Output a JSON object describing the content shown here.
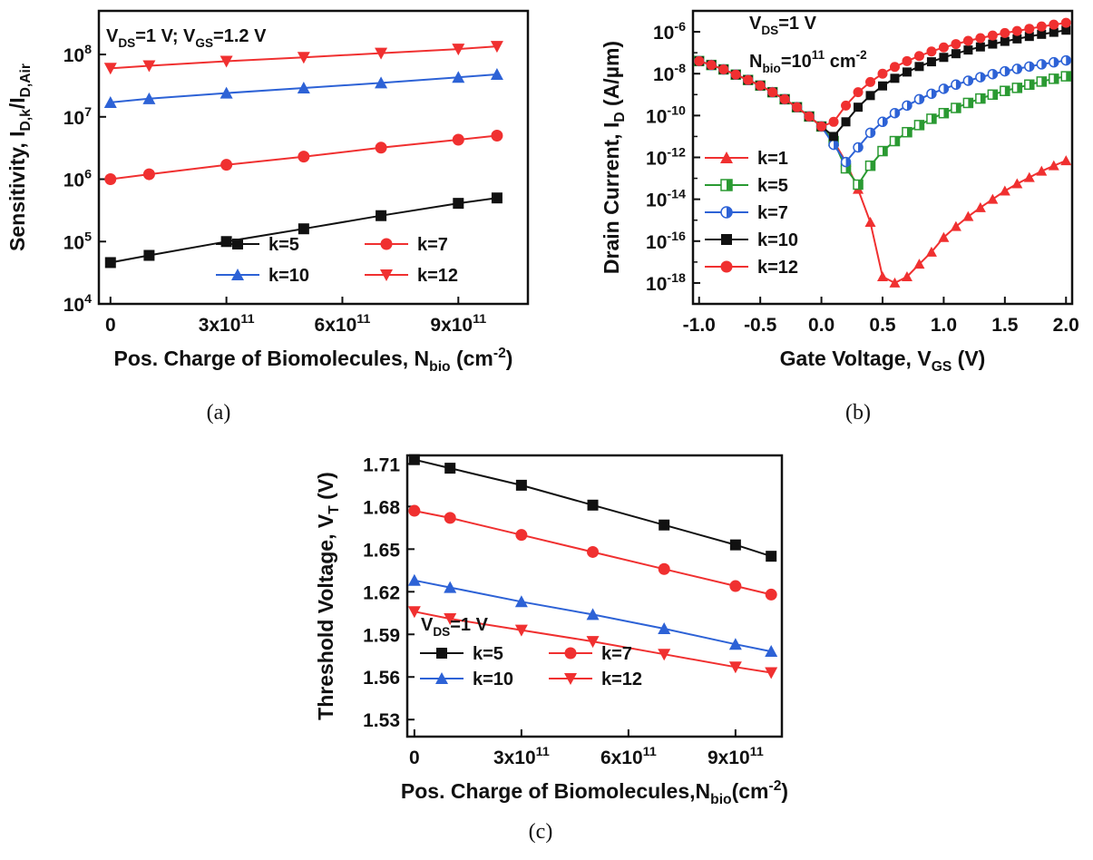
{
  "chart_data": [
    {
      "id": "a",
      "type": "scatter",
      "caption": "(a)",
      "yscale": "log",
      "xlim": [
        -30000000000.0,
        1080000000000.0
      ],
      "ylim": [
        10000.0,
        500000000.0
      ],
      "xticks": [
        {
          "v": 0,
          "l": "0"
        },
        {
          "v": 300000000000.0,
          "l": "3x10",
          "e": "11"
        },
        {
          "v": 600000000000.0,
          "l": "6x10",
          "e": "11"
        },
        {
          "v": 900000000000.0,
          "l": "9x10",
          "e": "11"
        }
      ],
      "yticks": [
        {
          "v": 10000.0,
          "e": "4"
        },
        {
          "v": 100000.0,
          "e": "5"
        },
        {
          "v": 1000000.0,
          "e": "6"
        },
        {
          "v": 10000000.0,
          "e": "7"
        },
        {
          "v": 100000000.0,
          "e": "8"
        }
      ],
      "xlabel": {
        "parts": [
          [
            "Pos. Charge of Biomolecules, N",
            ""
          ],
          [
            "bio",
            "sub"
          ],
          [
            " (cm",
            ""
          ],
          [
            "-2",
            "sup"
          ],
          [
            ")",
            ""
          ]
        ]
      },
      "ylabel": {
        "parts": [
          [
            "Sensitivity, I",
            ""
          ],
          [
            "D,k",
            "sub"
          ],
          [
            "/I",
            ""
          ],
          [
            "D,Air",
            "sub"
          ]
        ]
      },
      "annotations": [
        {
          "parts": [
            [
              "V",
              ""
            ],
            [
              "DS",
              "sub"
            ],
            [
              "=1 V; V",
              ""
            ],
            [
              "GS",
              "sub"
            ],
            [
              "=1.2 V",
              ""
            ]
          ]
        }
      ],
      "legend": {
        "position": "bottom-right",
        "columns": 2
      },
      "series": [
        {
          "name": "k=5",
          "color": "#111111",
          "marker": "square",
          "x": [
            0,
            100000000000.0,
            300000000000.0,
            500000000000.0,
            700000000000.0,
            900000000000.0,
            1000000000000.0
          ],
          "y": [
            46000.0,
            60000.0,
            100000.0,
            160000.0,
            260000.0,
            410000.0,
            500000.0
          ]
        },
        {
          "name": "k=7",
          "color": "#f03030",
          "marker": "circle",
          "x": [
            0,
            100000000000.0,
            300000000000.0,
            500000000000.0,
            700000000000.0,
            900000000000.0,
            1000000000000.0
          ],
          "y": [
            1000000.0,
            1200000.0,
            1700000.0,
            2300000.0,
            3200000.0,
            4300000.0,
            5000000.0
          ]
        },
        {
          "name": "k=10",
          "color": "#2d62d6",
          "marker": "triangle-up",
          "x": [
            0,
            100000000000.0,
            300000000000.0,
            500000000000.0,
            700000000000.0,
            900000000000.0,
            1000000000000.0
          ],
          "y": [
            17000000.0,
            19500000.0,
            24000000.0,
            29000000.0,
            35000000.0,
            43000000.0,
            48000000.0
          ]
        },
        {
          "name": "k=12",
          "color": "#f03030",
          "marker": "triangle-down",
          "x": [
            0,
            100000000000.0,
            300000000000.0,
            500000000000.0,
            700000000000.0,
            900000000000.0,
            1000000000000.0
          ],
          "y": [
            60000000.0,
            66000000.0,
            78000000.0,
            90000000.0,
            105000000.0,
            122000000.0,
            135000000.0
          ]
        }
      ]
    },
    {
      "id": "b",
      "type": "scatter",
      "caption": "(b)",
      "yscale": "log",
      "xlim": [
        -1.05,
        2.05
      ],
      "ylim": [
        1e-19,
        1e-05
      ],
      "xticks": [
        {
          "v": -1,
          "l": "-1.0"
        },
        {
          "v": -0.5,
          "l": "-0.5"
        },
        {
          "v": 0,
          "l": "0.0"
        },
        {
          "v": 0.5,
          "l": "0.5"
        },
        {
          "v": 1,
          "l": "1.0"
        },
        {
          "v": 1.5,
          "l": "1.5"
        },
        {
          "v": 2,
          "l": "2.0"
        }
      ],
      "yticks": [
        {
          "v": 1e-18,
          "e": "-18"
        },
        {
          "v": 1e-16,
          "e": "-16"
        },
        {
          "v": 1e-14,
          "e": "-14"
        },
        {
          "v": 1e-12,
          "e": "-12"
        },
        {
          "v": 1e-10,
          "e": "-10"
        },
        {
          "v": 1e-08,
          "e": "-8"
        },
        {
          "v": 1e-06,
          "e": "-6"
        }
      ],
      "xlabel": {
        "parts": [
          [
            "Gate Voltage, V",
            ""
          ],
          [
            "GS",
            "sub"
          ],
          [
            " (V)",
            ""
          ]
        ]
      },
      "ylabel": {
        "parts": [
          [
            "Drain Current, I",
            ""
          ],
          [
            "D",
            "sub"
          ],
          [
            " (A/µm)",
            ""
          ]
        ]
      },
      "annotations": [
        {
          "parts": [
            [
              "V",
              ""
            ],
            [
              "DS",
              "sub"
            ],
            [
              "=1 V",
              ""
            ]
          ]
        },
        {
          "parts": [
            [
              "N",
              ""
            ],
            [
              "bio",
              "sub"
            ],
            [
              "=10",
              ""
            ],
            [
              "11",
              "sup"
            ],
            [
              " cm",
              ""
            ],
            [
              "-2",
              "sup"
            ]
          ]
        }
      ],
      "legend": {
        "position": "left",
        "columns": 1
      },
      "series": [
        {
          "name": "k=1",
          "color": "#f03030",
          "marker": "triangle-up",
          "x": [
            -1.0,
            -0.9,
            -0.8,
            -0.7,
            -0.6,
            -0.5,
            -0.4,
            -0.3,
            -0.2,
            -0.1,
            0.0,
            0.1,
            0.2,
            0.3,
            0.4,
            0.5,
            0.6,
            0.7,
            0.8,
            0.9,
            1.0,
            1.1,
            1.2,
            1.3,
            1.4,
            1.5,
            1.6,
            1.7,
            1.8,
            1.9,
            2.0
          ],
          "y": [
            4e-08,
            2.6e-08,
            1.6e-08,
            9e-09,
            5e-09,
            2.7e-09,
            1.3e-09,
            6e-10,
            2.5e-10,
            9e-11,
            3e-11,
            6e-12,
            6e-13,
            3e-14,
            8e-16,
            2e-18,
            1e-18,
            2e-18,
            8e-18,
            3e-17,
            1.5e-16,
            5e-16,
            1.5e-15,
            4e-15,
            1e-14,
            2.5e-14,
            5.5e-14,
            1.1e-13,
            2.2e-13,
            4e-13,
            7e-13
          ]
        },
        {
          "name": "k=5",
          "color": "#2a9a32",
          "marker": "half-square",
          "x": [
            -1.0,
            -0.9,
            -0.8,
            -0.7,
            -0.6,
            -0.5,
            -0.4,
            -0.3,
            -0.2,
            -0.1,
            0.0,
            0.1,
            0.2,
            0.3,
            0.4,
            0.5,
            0.6,
            0.7,
            0.8,
            0.9,
            1.0,
            1.1,
            1.2,
            1.3,
            1.4,
            1.5,
            1.6,
            1.7,
            1.8,
            1.9,
            2.0
          ],
          "y": [
            4e-08,
            2.6e-08,
            1.6e-08,
            9e-09,
            5e-09,
            2.7e-09,
            1.3e-09,
            6e-10,
            2.5e-10,
            9e-11,
            3e-11,
            6e-12,
            3e-13,
            5e-14,
            4e-13,
            2e-12,
            6e-12,
            1.6e-11,
            3.5e-11,
            7e-11,
            1.3e-10,
            2.3e-10,
            4e-10,
            6.5e-10,
            1e-09,
            1.5e-09,
            2.1e-09,
            3e-09,
            4.2e-09,
            5.7e-09,
            7.5e-09
          ]
        },
        {
          "name": "k=7",
          "color": "#2d62d6",
          "marker": "half-circle",
          "x": [
            -1.0,
            -0.9,
            -0.8,
            -0.7,
            -0.6,
            -0.5,
            -0.4,
            -0.3,
            -0.2,
            -0.1,
            0.0,
            0.1,
            0.2,
            0.3,
            0.4,
            0.5,
            0.6,
            0.7,
            0.8,
            0.9,
            1.0,
            1.1,
            1.2,
            1.3,
            1.4,
            1.5,
            1.6,
            1.7,
            1.8,
            1.9,
            2.0
          ],
          "y": [
            4e-08,
            2.6e-08,
            1.6e-08,
            9e-09,
            5e-09,
            2.7e-09,
            1.3e-09,
            6e-10,
            2.5e-10,
            9e-11,
            3e-11,
            4e-12,
            6e-13,
            3e-12,
            1.5e-11,
            5e-11,
            1.3e-10,
            3e-10,
            6e-10,
            1.1e-09,
            1.9e-09,
            3e-09,
            4.6e-09,
            6.8e-09,
            9.5e-09,
            1.3e-08,
            1.7e-08,
            2.2e-08,
            2.8e-08,
            3.5e-08,
            4.3e-08
          ]
        },
        {
          "name": "k=10",
          "color": "#111111",
          "marker": "square",
          "x": [
            -1.0,
            -0.9,
            -0.8,
            -0.7,
            -0.6,
            -0.5,
            -0.4,
            -0.3,
            -0.2,
            -0.1,
            0.0,
            0.1,
            0.2,
            0.3,
            0.4,
            0.5,
            0.6,
            0.7,
            0.8,
            0.9,
            1.0,
            1.1,
            1.2,
            1.3,
            1.4,
            1.5,
            1.6,
            1.7,
            1.8,
            1.9,
            2.0
          ],
          "y": [
            4e-08,
            2.6e-08,
            1.6e-08,
            9e-09,
            5e-09,
            2.7e-09,
            1.3e-09,
            6e-10,
            2.5e-10,
            9e-11,
            3e-11,
            1e-11,
            5e-11,
            2.5e-10,
            9e-10,
            2.6e-09,
            6e-09,
            1.2e-08,
            2.2e-08,
            3.7e-08,
            6e-08,
            9e-08,
            1.35e-07,
            1.9e-07,
            2.6e-07,
            3.5e-07,
            4.6e-07,
            6e-07,
            7.6e-07,
            9.5e-07,
            1.2e-06
          ]
        },
        {
          "name": "k=12",
          "color": "#f03030",
          "marker": "circle",
          "x": [
            -1.0,
            -0.9,
            -0.8,
            -0.7,
            -0.6,
            -0.5,
            -0.4,
            -0.3,
            -0.2,
            -0.1,
            0.0,
            0.1,
            0.2,
            0.3,
            0.4,
            0.5,
            0.6,
            0.7,
            0.8,
            0.9,
            1.0,
            1.1,
            1.2,
            1.3,
            1.4,
            1.5,
            1.6,
            1.7,
            1.8,
            1.9,
            2.0
          ],
          "y": [
            4e-08,
            2.6e-08,
            1.6e-08,
            9e-09,
            5e-09,
            2.7e-09,
            1.3e-09,
            6e-10,
            2.5e-10,
            9e-11,
            3e-11,
            5e-11,
            3e-10,
            1.3e-09,
            4e-09,
            1e-08,
            2.1e-08,
            4e-08,
            7e-08,
            1.15e-07,
            1.8e-07,
            2.6e-07,
            3.7e-07,
            5e-07,
            6.7e-07,
            8.8e-07,
            1.1e-06,
            1.4e-06,
            1.8e-06,
            2.2e-06,
            2.7e-06
          ]
        }
      ]
    },
    {
      "id": "c",
      "type": "scatter",
      "caption": "(c)",
      "yscale": "linear",
      "xlim": [
        -20000000000.0,
        1030000000000.0
      ],
      "ylim": [
        1.518,
        1.716
      ],
      "xticks": [
        {
          "v": 0,
          "l": "0"
        },
        {
          "v": 300000000000.0,
          "l": "3x10",
          "e": "11"
        },
        {
          "v": 600000000000.0,
          "l": "6x10",
          "e": "11"
        },
        {
          "v": 900000000000.0,
          "l": "9x10",
          "e": "11"
        }
      ],
      "yticks": [
        {
          "v": 1.53,
          "l": "1.53"
        },
        {
          "v": 1.56,
          "l": "1.56"
        },
        {
          "v": 1.59,
          "l": "1.59"
        },
        {
          "v": 1.62,
          "l": "1.62"
        },
        {
          "v": 1.65,
          "l": "1.65"
        },
        {
          "v": 1.68,
          "l": "1.68"
        },
        {
          "v": 1.71,
          "l": "1.71"
        }
      ],
      "xlabel": {
        "parts": [
          [
            "Pos. Charge of Biomolecules,N",
            ""
          ],
          [
            "bio",
            "sub"
          ],
          [
            "(cm",
            ""
          ],
          [
            "-2",
            "sup"
          ],
          [
            ")",
            ""
          ]
        ]
      },
      "ylabel": {
        "parts": [
          [
            "Threshold Voltage, V",
            ""
          ],
          [
            "T",
            "sub"
          ],
          [
            " (V)",
            ""
          ]
        ]
      },
      "annotations": [
        {
          "parts": [
            [
              "V",
              ""
            ],
            [
              "DS",
              "sub"
            ],
            [
              "=1 V",
              ""
            ]
          ]
        }
      ],
      "legend": {
        "position": "bottom-left",
        "columns": 2
      },
      "series": [
        {
          "name": "k=5",
          "color": "#111111",
          "marker": "square",
          "x": [
            0,
            100000000000.0,
            300000000000.0,
            500000000000.0,
            700000000000.0,
            900000000000.0,
            1000000000000.0
          ],
          "y": [
            1.713,
            1.707,
            1.695,
            1.681,
            1.667,
            1.653,
            1.645
          ]
        },
        {
          "name": "k=7",
          "color": "#f03030",
          "marker": "circle",
          "x": [
            0,
            100000000000.0,
            300000000000.0,
            500000000000.0,
            700000000000.0,
            900000000000.0,
            1000000000000.0
          ],
          "y": [
            1.677,
            1.672,
            1.66,
            1.648,
            1.636,
            1.624,
            1.618
          ]
        },
        {
          "name": "k=10",
          "color": "#2d62d6",
          "marker": "triangle-up",
          "x": [
            0,
            100000000000.0,
            300000000000.0,
            500000000000.0,
            700000000000.0,
            900000000000.0,
            1000000000000.0
          ],
          "y": [
            1.628,
            1.623,
            1.613,
            1.604,
            1.594,
            1.583,
            1.578
          ]
        },
        {
          "name": "k=12",
          "color": "#f03030",
          "marker": "triangle-down",
          "x": [
            0,
            100000000000.0,
            300000000000.0,
            500000000000.0,
            700000000000.0,
            900000000000.0,
            1000000000000.0
          ],
          "y": [
            1.606,
            1.601,
            1.593,
            1.585,
            1.576,
            1.567,
            1.563
          ]
        }
      ]
    }
  ]
}
